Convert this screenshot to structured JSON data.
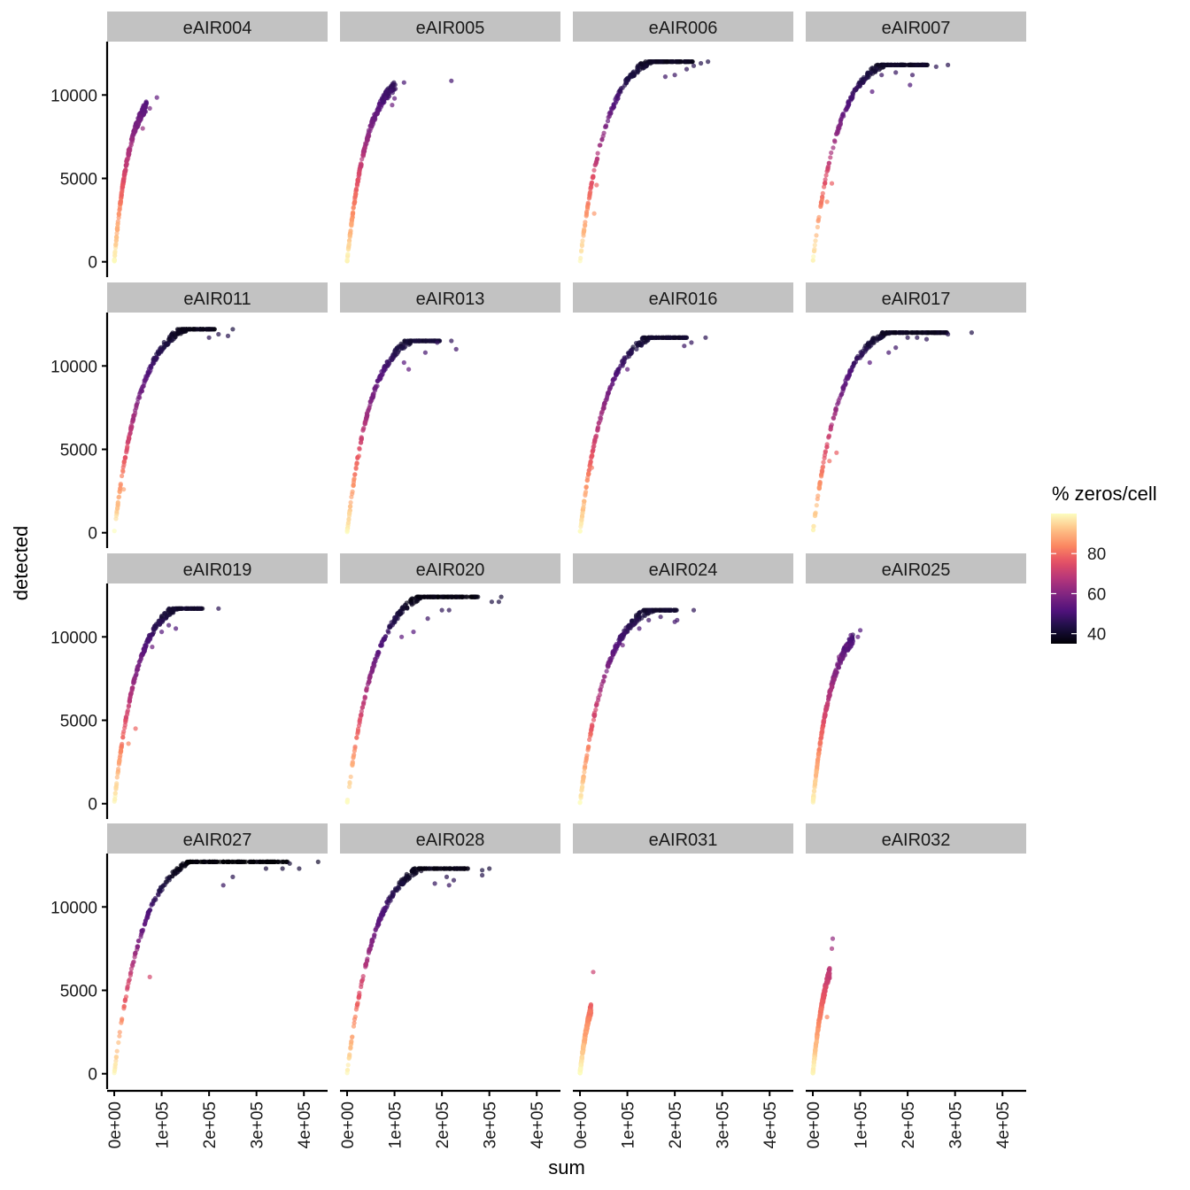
{
  "chart_data": {
    "type": "scatter",
    "layout": "facet_wrap 4x4",
    "xlabel": "sum",
    "ylabel": "detected",
    "xlim": [
      -15000,
      450000
    ],
    "ylim": [
      -600,
      13200
    ],
    "x_ticks": [
      0,
      100000,
      200000,
      300000,
      400000
    ],
    "x_tick_labels": [
      "0e+00",
      "1e+05",
      "2e+05",
      "3e+05",
      "4e+05"
    ],
    "y_ticks": [
      0,
      5000,
      10000
    ],
    "y_tick_labels": [
      "0",
      "5000",
      "10000"
    ],
    "color_legend": {
      "title": "% zeros/cell",
      "palette": "magma",
      "range": [
        35,
        100
      ],
      "breaks": [
        40,
        60,
        80
      ],
      "break_labels": [
        "40",
        "60",
        "80"
      ]
    },
    "panels": [
      {
        "name": "eAIR004",
        "max_sum": 80000,
        "max_detected": 9850,
        "curve_k": 32000,
        "outliers": [
          [
            90000,
            9850
          ],
          [
            75000,
            9200
          ],
          [
            60000,
            8000
          ]
        ]
      },
      {
        "name": "eAIR005",
        "max_sum": 120000,
        "max_detected": 10750,
        "curve_k": 42000,
        "outliers": [
          [
            220000,
            10850
          ],
          [
            120000,
            10750
          ],
          [
            100000,
            9800
          ],
          [
            95000,
            9400
          ]
        ]
      },
      {
        "name": "eAIR006",
        "max_sum": 280000,
        "max_detected": 12000,
        "curve_k": 55000,
        "outliers": [
          [
            270000,
            12000
          ],
          [
            255000,
            11900
          ],
          [
            240000,
            11750
          ],
          [
            225000,
            11550
          ],
          [
            200000,
            11200
          ],
          [
            180000,
            11100
          ],
          [
            35000,
            4600
          ],
          [
            30000,
            2900
          ]
        ]
      },
      {
        "name": "eAIR007",
        "max_sum": 285000,
        "max_detected": 11800,
        "curve_k": 55000,
        "outliers": [
          [
            285000,
            11800
          ],
          [
            260000,
            11700
          ],
          [
            210000,
            11200
          ],
          [
            205000,
            10600
          ],
          [
            175000,
            11350
          ],
          [
            145000,
            11200
          ],
          [
            125000,
            10200
          ],
          [
            40000,
            4700
          ],
          [
            30000,
            3600
          ]
        ]
      },
      {
        "name": "eAIR011",
        "max_sum": 250000,
        "max_detected": 12200,
        "curve_k": 55000,
        "outliers": [
          [
            250000,
            12200
          ],
          [
            240000,
            11800
          ],
          [
            220000,
            11900
          ],
          [
            200000,
            11700
          ],
          [
            20000,
            2600
          ]
        ]
      },
      {
        "name": "eAIR013",
        "max_sum": 230000,
        "max_detected": 11500,
        "curve_k": 50000,
        "outliers": [
          [
            230000,
            11000
          ],
          [
            220000,
            11500
          ],
          [
            190000,
            11400
          ],
          [
            165000,
            10800
          ],
          [
            130000,
            9800
          ],
          [
            120000,
            10200
          ],
          [
            25000,
            4600
          ],
          [
            20000,
            4100
          ]
        ]
      },
      {
        "name": "eAIR016",
        "max_sum": 265000,
        "max_detected": 11700,
        "curve_k": 55000,
        "outliers": [
          [
            265000,
            11700
          ],
          [
            235000,
            11400
          ],
          [
            220000,
            11200
          ],
          [
            100000,
            9800
          ],
          [
            25000,
            3900
          ]
        ]
      },
      {
        "name": "eAIR017",
        "max_sum": 335000,
        "max_detected": 12000,
        "curve_k": 58000,
        "outliers": [
          [
            335000,
            12000
          ],
          [
            285000,
            11900
          ],
          [
            240000,
            11600
          ],
          [
            220000,
            11700
          ],
          [
            200000,
            11700
          ],
          [
            175000,
            11100
          ],
          [
            160000,
            10800
          ],
          [
            120000,
            10200
          ],
          [
            50000,
            4800
          ],
          [
            35000,
            4300
          ]
        ]
      },
      {
        "name": "eAIR019",
        "max_sum": 220000,
        "max_detected": 11700,
        "curve_k": 48000,
        "outliers": [
          [
            220000,
            11700
          ],
          [
            130000,
            10500
          ],
          [
            115000,
            10700
          ],
          [
            100000,
            10300
          ],
          [
            80000,
            9400
          ],
          [
            45000,
            4500
          ],
          [
            30000,
            3600
          ]
        ]
      },
      {
        "name": "eAIR020",
        "max_sum": 325000,
        "max_detected": 12400,
        "curve_k": 58000,
        "outliers": [
          [
            325000,
            12400
          ],
          [
            320000,
            12100
          ],
          [
            305000,
            12100
          ],
          [
            215000,
            11600
          ],
          [
            200000,
            11600
          ],
          [
            170000,
            11100
          ],
          [
            140000,
            10300
          ],
          [
            115000,
            10000
          ]
        ]
      },
      {
        "name": "eAIR024",
        "max_sum": 240000,
        "max_detected": 11600,
        "curve_k": 55000,
        "outliers": [
          [
            240000,
            11600
          ],
          [
            205000,
            11000
          ],
          [
            200000,
            10900
          ],
          [
            170000,
            11200
          ],
          [
            145000,
            11000
          ],
          [
            125000,
            10500
          ],
          [
            90000,
            9500
          ]
        ]
      },
      {
        "name": "eAIR025",
        "max_sum": 100000,
        "max_detected": 10400,
        "curve_k": 40000,
        "outliers": [
          [
            100000,
            10400
          ],
          [
            95000,
            10000
          ],
          [
            80000,
            10100
          ],
          [
            70000,
            9500
          ],
          [
            55000,
            8800
          ]
        ]
      },
      {
        "name": "eAIR027",
        "max_sum": 430000,
        "max_detected": 12700,
        "curve_k": 60000,
        "outliers": [
          [
            430000,
            12700
          ],
          [
            390000,
            12300
          ],
          [
            370000,
            12600
          ],
          [
            355000,
            12300
          ],
          [
            320000,
            12300
          ],
          [
            250000,
            11800
          ],
          [
            230000,
            11300
          ],
          [
            75000,
            5800
          ]
        ]
      },
      {
        "name": "eAIR028",
        "max_sum": 300000,
        "max_detected": 12300,
        "curve_k": 58000,
        "outliers": [
          [
            300000,
            12300
          ],
          [
            285000,
            12200
          ],
          [
            285000,
            11900
          ],
          [
            225000,
            11600
          ],
          [
            215000,
            11300
          ],
          [
            210000,
            11800
          ],
          [
            185000,
            11400
          ]
        ]
      },
      {
        "name": "eAIR031",
        "max_sum": 28000,
        "max_detected": 6100,
        "curve_k": 26000,
        "outliers": [
          [
            28000,
            6100
          ]
        ]
      },
      {
        "name": "eAIR032",
        "max_sum": 42000,
        "max_detected": 8100,
        "curve_k": 30000,
        "outliers": [
          [
            42000,
            8100
          ],
          [
            40000,
            7500
          ],
          [
            30000,
            3400
          ]
        ]
      }
    ]
  }
}
